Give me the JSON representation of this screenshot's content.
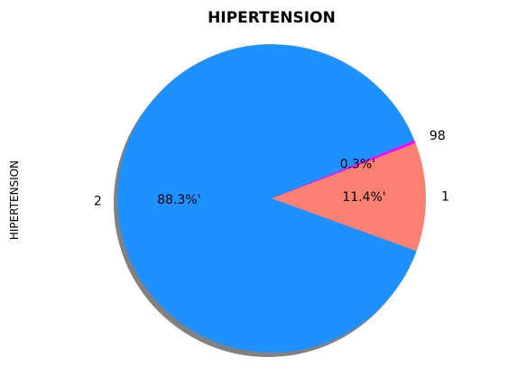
{
  "chart_data": {
    "type": "pie",
    "title": "HIPERTENSION",
    "ylabel": "HIPERTENSION",
    "slices": [
      {
        "label": "1",
        "value": 11.4,
        "pct_label": "11.4%'",
        "color": "#fa8072"
      },
      {
        "label": "98",
        "value": 0.3,
        "pct_label": "0.3%'",
        "color": "#ff00ff"
      },
      {
        "label": "2",
        "value": 88.3,
        "pct_label": "88.3%'",
        "color": "#1e90ff"
      }
    ],
    "shadow": true,
    "start_angle": -20,
    "counterclockwise": true
  }
}
